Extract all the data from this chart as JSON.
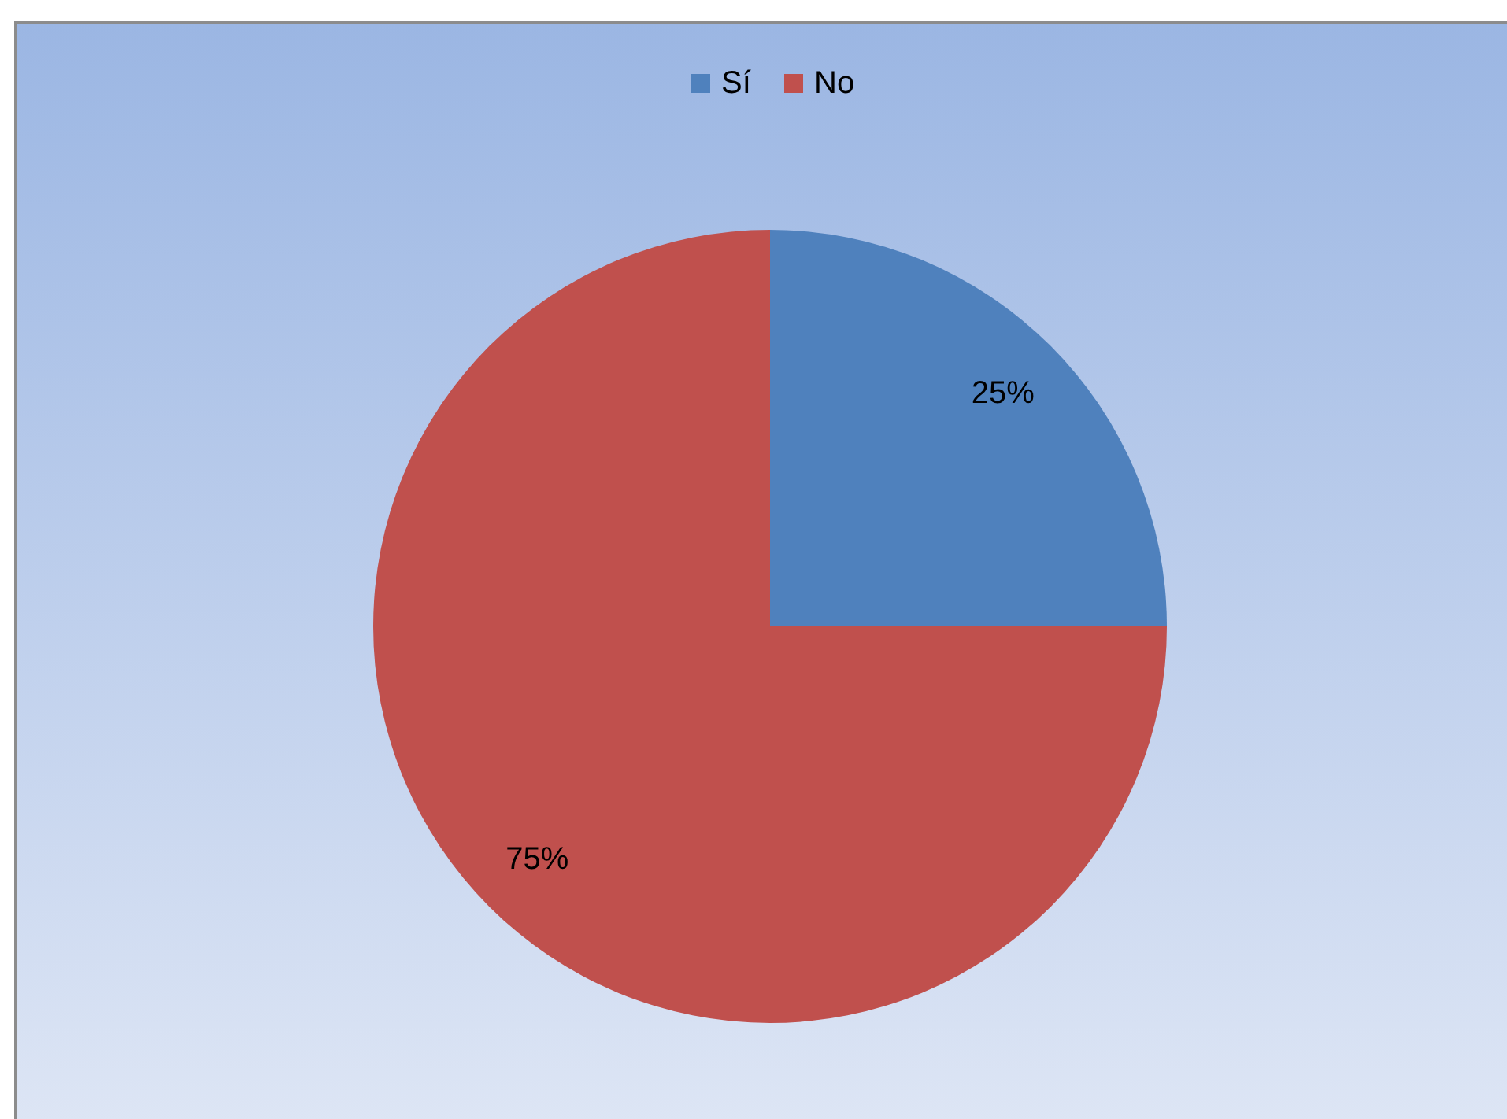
{
  "chart_data": {
    "type": "pie",
    "categories": [
      "Sí",
      "No"
    ],
    "values": [
      25,
      75
    ],
    "colors": [
      "#4f81bd",
      "#c0504d"
    ],
    "value_labels": [
      "25%",
      "75%"
    ],
    "legend": "top"
  }
}
